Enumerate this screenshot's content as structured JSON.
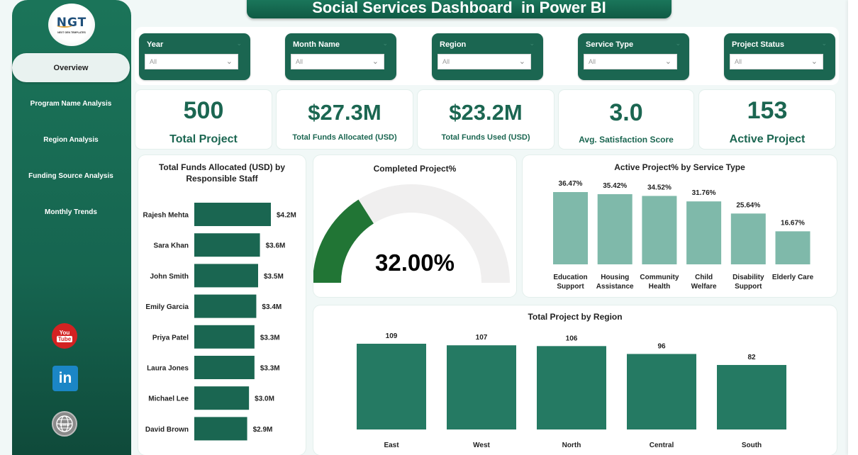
{
  "header": {
    "title": "Social Services Dashboard  in Power BI"
  },
  "sidebar": {
    "logo": {
      "main": "NGT",
      "sub": "NEXT GEN TEMPLATES"
    },
    "items": [
      {
        "label": "Overview",
        "active": true
      },
      {
        "label": "Program Name Analysis",
        "active": false
      },
      {
        "label": "Region Analysis",
        "active": false
      },
      {
        "label": "Funding Source Analysis",
        "active": false
      },
      {
        "label": "Monthly Trends",
        "active": false
      }
    ],
    "social": [
      {
        "name": "youtube-icon",
        "label_top": "You",
        "label_bottom": "Tube"
      },
      {
        "name": "linkedin-icon",
        "label": "in"
      },
      {
        "name": "website-icon",
        "label": "www"
      }
    ]
  },
  "filters": [
    {
      "label": "Year",
      "value": "All"
    },
    {
      "label": "Month Name",
      "value": "All"
    },
    {
      "label": "Region",
      "value": "All"
    },
    {
      "label": "Service Type",
      "value": "All"
    },
    {
      "label": "Project Status",
      "value": "All"
    }
  ],
  "kpis": [
    {
      "value": "500",
      "label": "Total Project"
    },
    {
      "value": "$27.3M",
      "label": "Total Funds Allocated (USD)"
    },
    {
      "value": "$23.2M",
      "label": "Total Funds Used (USD)"
    },
    {
      "value": "3.0",
      "label": "Avg. Satisfaction Score"
    },
    {
      "value": "153",
      "label": "Active Project"
    }
  ],
  "colors": {
    "brand": "#1b6651",
    "staff_bar": "#1a6651",
    "service_bar": "#7fb9aa",
    "region_bar": "#257a63",
    "gauge_fill": "#217535",
    "gauge_track": "#f0efef"
  },
  "chart_data": [
    {
      "type": "bar",
      "orientation": "horizontal",
      "title": "Total Funds Allocated (USD) by Responsible Staff",
      "categories": [
        "Rajesh Mehta",
        "Sara Khan",
        "John Smith",
        "Emily Garcia",
        "Priya Patel",
        "Laura Jones",
        "Michael Lee",
        "David Brown"
      ],
      "values": [
        4.2,
        3.6,
        3.5,
        3.4,
        3.3,
        3.3,
        3.0,
        2.9
      ],
      "data_labels": [
        "$4.2M",
        "$3.6M",
        "$3.5M",
        "$3.4M",
        "$3.3M",
        "$3.3M",
        "$3.0M",
        "$2.9M"
      ],
      "unit": "USD millions"
    },
    {
      "type": "gauge",
      "title": "Completed Project%",
      "value": 32.0,
      "max": 100,
      "display": "32.00%"
    },
    {
      "type": "bar",
      "title": "Active Project% by Service Type",
      "categories": [
        [
          "Education",
          "Support"
        ],
        [
          "Housing",
          "Assistance"
        ],
        [
          "Community",
          "Health"
        ],
        [
          "Child",
          "Welfare"
        ],
        [
          "Disability",
          "Support"
        ],
        [
          "Elderly Care"
        ]
      ],
      "values": [
        36.47,
        35.42,
        34.52,
        31.76,
        25.64,
        16.67
      ],
      "data_labels": [
        "36.47%",
        "35.42%",
        "34.52%",
        "31.76%",
        "25.64%",
        "16.67%"
      ]
    },
    {
      "type": "bar",
      "title": "Total Project by Region",
      "categories": [
        "East",
        "West",
        "North",
        "Central",
        "South"
      ],
      "values": [
        109,
        107,
        106,
        96,
        82
      ],
      "data_labels": [
        "109",
        "107",
        "106",
        "96",
        "82"
      ]
    }
  ]
}
